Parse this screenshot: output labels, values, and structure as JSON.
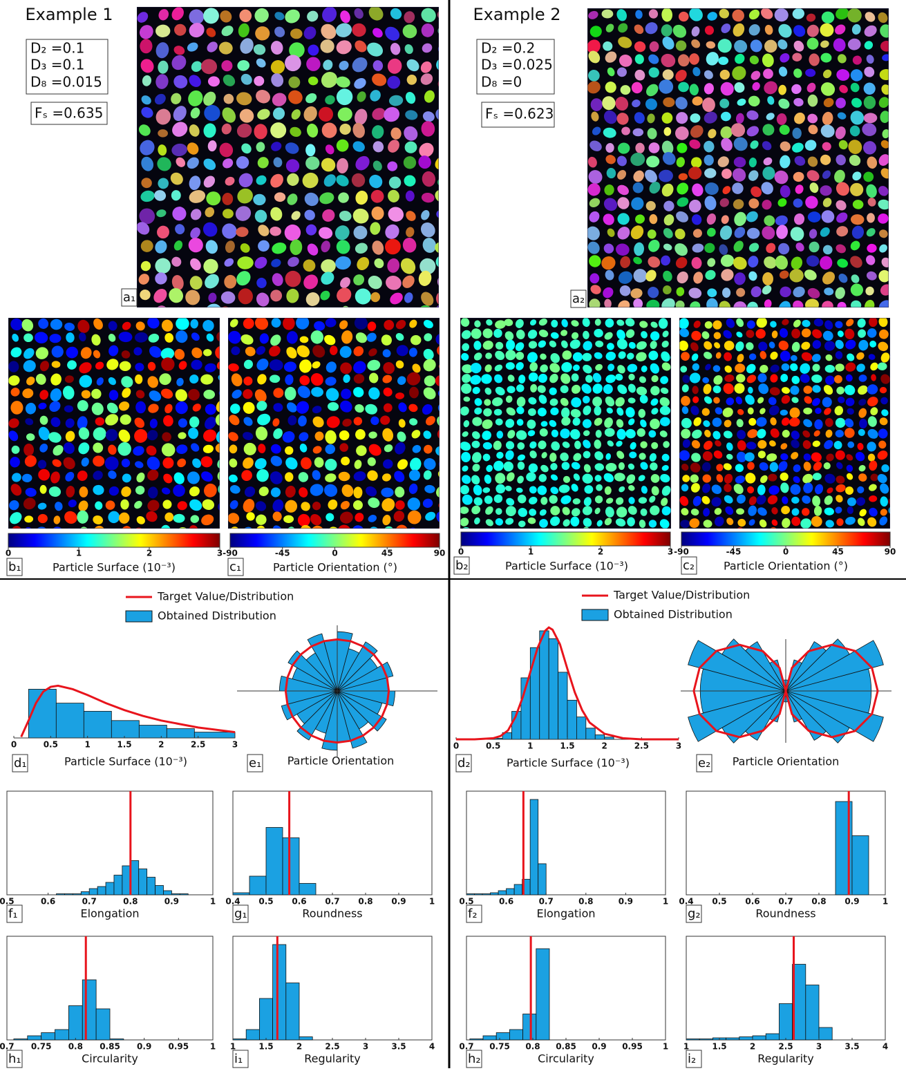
{
  "examples": [
    {
      "title": "Example 1",
      "params": [
        "D₂ =0.1",
        "D₃ =0.1",
        "D₈ =0.015"
      ],
      "fs": "Fₛ =0.635",
      "panel": "a₁"
    },
    {
      "title": "Example 2",
      "params": [
        "D₂ =0.2",
        "D₃ =0.025",
        "D₈ =0"
      ],
      "fs": "Fₛ =0.623",
      "panel": "a₂"
    }
  ],
  "chart_data": [
    {
      "type": "colorbar",
      "panel": "b₁",
      "xlabel": "Particle Surface (10⁻³)",
      "xlim": [
        0,
        3
      ],
      "xticks": [
        0,
        1,
        2,
        3
      ],
      "colors": [
        "#00007f",
        "#0000ff",
        "#007fff",
        "#00ffff",
        "#7fff7f",
        "#ffff00",
        "#ff7f00",
        "#ff0000",
        "#7f0000"
      ]
    },
    {
      "type": "colorbar",
      "panel": "c₁",
      "xlabel": "Particle Orientation (°)",
      "xlim": [
        -90,
        90
      ],
      "xticks": [
        -90,
        -45,
        0,
        45,
        90
      ],
      "colors": [
        "#00007f",
        "#0000ff",
        "#007fff",
        "#00ffff",
        "#7fff7f",
        "#ffff00",
        "#ff7f00",
        "#ff0000",
        "#7f0000"
      ]
    },
    {
      "type": "colorbar",
      "panel": "b₂",
      "xlabel": "Particle Surface (10⁻³)",
      "xlim": [
        0,
        3
      ],
      "xticks": [
        0,
        1,
        2,
        3
      ],
      "colors": [
        "#00007f",
        "#0000ff",
        "#007fff",
        "#00ffff",
        "#7fff7f",
        "#ffff00",
        "#ff7f00",
        "#ff0000",
        "#7f0000"
      ]
    },
    {
      "type": "colorbar",
      "panel": "c₂",
      "xlabel": "Particle Orientation (°)",
      "xlim": [
        -90,
        90
      ],
      "xticks": [
        -90,
        -45,
        0,
        45,
        90
      ],
      "colors": [
        "#00007f",
        "#0000ff",
        "#007fff",
        "#00ffff",
        "#7fff7f",
        "#ffff00",
        "#ff7f00",
        "#ff0000",
        "#7f0000"
      ]
    },
    {
      "type": "histogram",
      "panel": "d₁",
      "xlabel": "Particle Surface (10⁻³)",
      "xlim": [
        0,
        3
      ],
      "xticks": [
        0,
        0.5,
        1,
        1.5,
        2,
        2.5,
        3
      ],
      "ylim": [
        0,
        1
      ],
      "bins": [
        0.2,
        0.575,
        0.95,
        1.325,
        1.7,
        2.075,
        2.45,
        3
      ],
      "values": [
        0.42,
        0.3,
        0.23,
        0.15,
        0.11,
        0.08,
        0.05
      ],
      "color": "#1ba1e2",
      "bar_name": "Obtained Distribution",
      "series": [
        {
          "name": "Target Value/Distribution",
          "color": "#e8141c",
          "x": [
            0.1,
            0.2,
            0.3,
            0.4,
            0.5,
            0.6,
            0.8,
            1.0,
            1.25,
            1.5,
            1.75,
            2,
            2.25,
            2.5,
            2.75,
            3
          ],
          "values": [
            0.01,
            0.15,
            0.3,
            0.4,
            0.44,
            0.45,
            0.42,
            0.37,
            0.3,
            0.24,
            0.19,
            0.15,
            0.12,
            0.09,
            0.07,
            0.05
          ]
        }
      ]
    },
    {
      "type": "rose",
      "panel": "e₁",
      "xlabel": "Particle Orientation",
      "angles": [
        -90,
        -75,
        -60,
        -45,
        -30,
        -15,
        0,
        15,
        30,
        45,
        60,
        75,
        90
      ],
      "values": [
        1.0,
        1.15,
        0.85,
        1.1,
        0.9,
        1.12,
        1.0,
        1.12,
        0.9,
        1.1,
        0.85,
        1.15
      ],
      "rlim": [
        0,
        1.3
      ],
      "color": "#1ba1e2",
      "target_angles": [
        -90,
        -75,
        -60,
        -45,
        -30,
        -15,
        0,
        15,
        30,
        45,
        60,
        75,
        90
      ],
      "target_values": [
        1,
        1,
        1,
        1,
        1,
        1,
        1,
        1,
        1,
        1,
        1,
        1,
        1
      ],
      "target_color": "#e8141c"
    },
    {
      "type": "histogram",
      "panel": "f₁",
      "xlabel": "Elongation",
      "frame": true,
      "xlim": [
        0.5,
        1
      ],
      "xticks": [
        0.5,
        0.6,
        0.7,
        0.8,
        0.9,
        1
      ],
      "ylim": [
        0,
        1
      ],
      "bins": [
        0.62,
        0.64,
        0.66,
        0.68,
        0.7,
        0.72,
        0.74,
        0.76,
        0.78,
        0.8,
        0.82,
        0.84,
        0.86,
        0.88,
        0.9,
        0.92,
        0.94
      ],
      "values": [
        0.01,
        0.01,
        0.01,
        0.03,
        0.06,
        0.08,
        0.12,
        0.19,
        0.28,
        0.33,
        0.25,
        0.17,
        0.09,
        0.04,
        0.01,
        0.01
      ],
      "color": "#1ba1e2",
      "target": 0.8,
      "target_color": "#e8141c"
    },
    {
      "type": "histogram",
      "panel": "g₁",
      "xlabel": "Roundness",
      "frame": true,
      "xlim": [
        0.4,
        1
      ],
      "xticks": [
        0.4,
        0.5,
        0.6,
        0.7,
        0.8,
        0.9,
        1
      ],
      "ylim": [
        0,
        1
      ],
      "bins": [
        0.4,
        0.45,
        0.5,
        0.55,
        0.6,
        0.65
      ],
      "values": [
        0.02,
        0.18,
        0.65,
        0.55,
        0.11
      ],
      "color": "#1ba1e2",
      "target": 0.57,
      "target_color": "#e8141c"
    },
    {
      "type": "histogram",
      "panel": "h₁",
      "xlabel": "Circularity",
      "frame": true,
      "xlim": [
        0.7,
        1
      ],
      "xticks": [
        0.7,
        0.75,
        0.8,
        0.85,
        0.9,
        0.95,
        1
      ],
      "ylim": [
        0,
        1
      ],
      "bins": [
        0.71,
        0.73,
        0.75,
        0.77,
        0.79,
        0.81,
        0.83,
        0.85,
        0.87
      ],
      "values": [
        0.01,
        0.04,
        0.07,
        0.1,
        0.33,
        0.58,
        0.3,
        0.01
      ],
      "color": "#1ba1e2",
      "target": 0.815,
      "target_color": "#e8141c"
    },
    {
      "type": "histogram",
      "panel": "i₁",
      "xlabel": "Regularity",
      "frame": true,
      "xlim": [
        1,
        4
      ],
      "xticks": [
        1,
        1.5,
        2,
        2.5,
        3,
        3.5,
        4
      ],
      "ylim": [
        0,
        1
      ],
      "bins": [
        1.0,
        1.2,
        1.4,
        1.6,
        1.8,
        2.0,
        2.2
      ],
      "values": [
        0.01,
        0.1,
        0.4,
        0.92,
        0.55,
        0.03
      ],
      "color": "#1ba1e2",
      "target": 1.67,
      "target_color": "#e8141c"
    },
    {
      "type": "histogram",
      "panel": "d₂",
      "xlabel": "Particle Surface (10⁻³)",
      "xlim": [
        0,
        3
      ],
      "xticks": [
        0,
        0.5,
        1,
        1.5,
        2,
        2.5,
        3
      ],
      "ylim": [
        0,
        1.05
      ],
      "bins": [
        0.5,
        0.625,
        0.75,
        0.875,
        1.0,
        1.125,
        1.25,
        1.375,
        1.5,
        1.625,
        1.75,
        1.875,
        2.0,
        2.125
      ],
      "values": [
        0.01,
        0.06,
        0.25,
        0.55,
        0.82,
        0.97,
        0.9,
        0.6,
        0.35,
        0.2,
        0.1,
        0.04,
        0.02
      ],
      "color": "#1ba1e2",
      "bar_name": "Obtained Distribution",
      "series": [
        {
          "name": "Target Value/Distribution",
          "color": "#e8141c",
          "x": [
            0,
            0.25,
            0.5,
            0.6,
            0.7,
            0.8,
            0.9,
            1,
            1.1,
            1.2,
            1.25,
            1.3,
            1.4,
            1.5,
            1.6,
            1.7,
            1.8,
            2,
            2.25,
            2.5,
            3
          ],
          "values": [
            0,
            0,
            0.01,
            0.03,
            0.08,
            0.2,
            0.38,
            0.6,
            0.82,
            0.97,
            1.0,
            0.98,
            0.85,
            0.63,
            0.42,
            0.26,
            0.15,
            0.05,
            0.01,
            0,
            0
          ]
        }
      ]
    },
    {
      "type": "rose",
      "panel": "e₂",
      "xlabel": "Particle Orientation",
      "angles": [
        -90,
        -75,
        -60,
        -45,
        -30,
        -15,
        0,
        15,
        30,
        45,
        60,
        75,
        90
      ],
      "values": [
        0.12,
        0.35,
        0.62,
        0.8,
        1.1,
        0.93,
        0.93,
        1.1,
        0.8,
        0.62,
        0.35,
        0.12
      ],
      "rlim": [
        0,
        1.3
      ],
      "color": "#1ba1e2",
      "target_angles": [
        -90,
        -75,
        -60,
        -45,
        -30,
        -15,
        0,
        15,
        30,
        45,
        60,
        75,
        90
      ],
      "target_values": [
        0,
        0.26,
        0.5,
        0.71,
        0.87,
        0.97,
        1,
        0.97,
        0.87,
        0.71,
        0.5,
        0.26,
        0
      ],
      "target_color": "#e8141c"
    },
    {
      "type": "histogram",
      "panel": "f₂",
      "xlabel": "Elongation",
      "frame": true,
      "xlim": [
        0.5,
        1
      ],
      "xticks": [
        0.5,
        0.6,
        0.7,
        0.8,
        0.9,
        1
      ],
      "ylim": [
        0,
        1
      ],
      "bins": [
        0.5,
        0.52,
        0.54,
        0.56,
        0.58,
        0.6,
        0.62,
        0.64,
        0.66,
        0.68,
        0.7
      ],
      "values": [
        0.01,
        0.01,
        0.01,
        0.02,
        0.04,
        0.06,
        0.1,
        0.15,
        0.92,
        0.3
      ],
      "color": "#1ba1e2",
      "target": 0.643,
      "target_color": "#e8141c"
    },
    {
      "type": "histogram",
      "panel": "g₂",
      "xlabel": "Roundness",
      "frame": true,
      "xlim": [
        0.4,
        1
      ],
      "xticks": [
        0.4,
        0.5,
        0.6,
        0.7,
        0.8,
        0.9,
        1
      ],
      "ylim": [
        0,
        1
      ],
      "bins": [
        0.85,
        0.9,
        0.95
      ],
      "values": [
        0.9,
        0.57
      ],
      "color": "#1ba1e2",
      "target": 0.89,
      "target_color": "#e8141c"
    },
    {
      "type": "histogram",
      "panel": "h₂",
      "xlabel": "Circularity",
      "frame": true,
      "xlim": [
        0.7,
        1
      ],
      "xticks": [
        0.7,
        0.75,
        0.8,
        0.85,
        0.9,
        0.95,
        1
      ],
      "ylim": [
        0,
        1
      ],
      "bins": [
        0.705,
        0.725,
        0.745,
        0.765,
        0.785,
        0.805,
        0.825
      ],
      "values": [
        0.01,
        0.04,
        0.07,
        0.1,
        0.25,
        0.88
      ],
      "color": "#1ba1e2",
      "target": 0.797,
      "target_color": "#e8141c"
    },
    {
      "type": "histogram",
      "panel": "i₂",
      "xlabel": "Regularity",
      "frame": true,
      "xlim": [
        1,
        4
      ],
      "xticks": [
        1,
        1.5,
        2,
        2.5,
        3,
        3.5,
        4
      ],
      "ylim": [
        0,
        1
      ],
      "bins": [
        1.0,
        1.2,
        1.4,
        1.6,
        1.8,
        2.0,
        2.2,
        2.4,
        2.6,
        2.8,
        3.0,
        3.2
      ],
      "values": [
        0.01,
        0.01,
        0.02,
        0.02,
        0.03,
        0.04,
        0.06,
        0.35,
        0.73,
        0.53,
        0.12
      ],
      "color": "#1ba1e2",
      "target": 2.62,
      "target_color": "#e8141c"
    }
  ]
}
